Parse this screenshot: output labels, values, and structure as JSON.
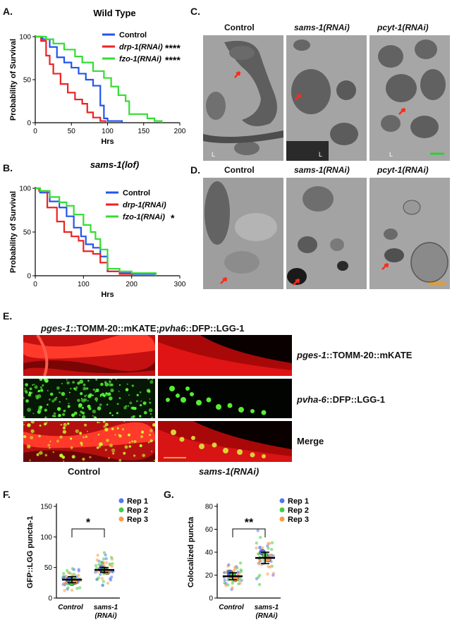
{
  "panel_letters": {
    "A": "A.",
    "B": "B.",
    "C": "C.",
    "D": "D.",
    "E": "E.",
    "F": "F.",
    "G": "G."
  },
  "colors": {
    "control": "#2255ee",
    "drp1": "#ee2222",
    "fzo1": "#33dd33",
    "rep1": "#5577ee",
    "rep2": "#44cc44",
    "rep3": "#ff9944",
    "scalebar_green": "#33cc33",
    "scalebar_orange": "#ff9900",
    "scalebar_yellow": "#d9a84a",
    "arrow": "#ff2a1a"
  },
  "chart_data": [
    {
      "id": "A",
      "type": "line",
      "title": "Wild Type",
      "xlabel": "Hrs",
      "ylabel": "Probability of Survival",
      "xlim": [
        0,
        200
      ],
      "ylim": [
        0,
        100
      ],
      "xticks": [
        "0",
        "50",
        "100",
        "150",
        "200"
      ],
      "yticks": [
        "0",
        "50",
        "100"
      ],
      "series": [
        {
          "name": "Control",
          "color": "#2255ee",
          "stars": "",
          "x": [
            0,
            10,
            20,
            30,
            40,
            50,
            60,
            70,
            80,
            90,
            95,
            100,
            120
          ],
          "y": [
            100,
            97,
            88,
            76,
            70,
            64,
            57,
            50,
            43,
            20,
            5,
            2,
            0
          ]
        },
        {
          "name": "drp-1(RNAi)",
          "color": "#ee2222",
          "stars": "****",
          "x": [
            0,
            8,
            15,
            20,
            25,
            35,
            45,
            55,
            65,
            72,
            80,
            90,
            97
          ],
          "y": [
            100,
            95,
            78,
            68,
            57,
            45,
            35,
            27,
            22,
            12,
            6,
            2,
            0
          ]
        },
        {
          "name": "fzo-1(RNAi)",
          "color": "#33dd33",
          "stars": "****",
          "x": [
            0,
            15,
            25,
            40,
            55,
            65,
            80,
            95,
            105,
            115,
            125,
            130,
            150,
            155,
            165,
            175
          ],
          "y": [
            100,
            97,
            92,
            85,
            77,
            70,
            60,
            52,
            42,
            32,
            25,
            10,
            10,
            5,
            2,
            0
          ]
        }
      ]
    },
    {
      "id": "B",
      "type": "line",
      "title": "sams-1(lof)",
      "xlabel": "Hrs",
      "ylabel": "Probability of Survival",
      "xlim": [
        0,
        300
      ],
      "ylim": [
        0,
        100
      ],
      "xticks": [
        "0",
        "100",
        "200",
        "300"
      ],
      "yticks": [
        "0",
        "50",
        "100"
      ],
      "series": [
        {
          "name": "Control",
          "color": "#2255ee",
          "stars": "",
          "x": [
            0,
            10,
            30,
            50,
            65,
            80,
            95,
            105,
            120,
            135,
            150,
            175,
            200,
            250
          ],
          "y": [
            100,
            95,
            85,
            78,
            68,
            55,
            45,
            36,
            32,
            22,
            5,
            3,
            2,
            0
          ]
        },
        {
          "name": "drp-1(RNAi)",
          "color": "#ee2222",
          "stars": "",
          "x": [
            0,
            8,
            25,
            45,
            60,
            75,
            90,
            100,
            110,
            120,
            135,
            150,
            175,
            200
          ],
          "y": [
            100,
            97,
            78,
            62,
            50,
            45,
            40,
            28,
            28,
            25,
            15,
            5,
            2,
            0
          ]
        },
        {
          "name": "fzo-1(RNAi)",
          "color": "#33dd33",
          "stars": "*",
          "x": [
            0,
            10,
            30,
            50,
            65,
            80,
            100,
            115,
            125,
            135,
            150,
            175,
            200,
            250
          ],
          "y": [
            100,
            97,
            90,
            84,
            80,
            70,
            58,
            50,
            42,
            30,
            8,
            5,
            3,
            0
          ]
        }
      ]
    },
    {
      "id": "F",
      "type": "scatter",
      "xlabel": "",
      "ylabel": "GFP::LGG puncta-1",
      "ylim": [
        0,
        150
      ],
      "yticks": [
        "0",
        "50",
        "100",
        "150"
      ],
      "categories": [
        "Control",
        "sams-1 (RNAi)"
      ],
      "significance": "*",
      "replicates": [
        "Rep 1",
        "Rep 2",
        "Rep 3"
      ],
      "means": [
        30,
        46
      ],
      "sem": [
        5,
        4
      ],
      "rep_means": [
        [
          30,
          25,
          27
        ],
        [
          48,
          45,
          43
        ]
      ]
    },
    {
      "id": "G",
      "type": "scatter",
      "xlabel": "",
      "ylabel": "Colocalized puncta",
      "ylim": [
        0,
        80
      ],
      "yticks": [
        "0",
        "20",
        "40",
        "60",
        "80"
      ],
      "categories": [
        "Control",
        "sams-1 (RNAi)"
      ],
      "significance": "**",
      "replicates": [
        "Rep 1",
        "Rep 2",
        "Rep 3"
      ],
      "means": [
        19,
        35
      ],
      "sem": [
        3,
        5
      ],
      "rep_means": [
        [
          22,
          20,
          17
        ],
        [
          40,
          37,
          34
        ]
      ]
    }
  ],
  "panel_c": {
    "labels": [
      "Control",
      "sams-1(RNAi)",
      "pcyt-1(RNAi)"
    ],
    "lumen": "L"
  },
  "panel_d": {
    "labels": [
      "Control",
      "sams-1(RNAi)",
      "pcyt-1(RNAi)"
    ]
  },
  "panel_e": {
    "title": {
      "p1": "pges-1",
      "p2": "::TOMM-20::mKATE;",
      "p3": "pvha6",
      "p4": "::DFP::LGG-1"
    },
    "row1": {
      "a": "pges-1",
      "b": "::TOMM-20::mKATE"
    },
    "row2": {
      "a": "pvha-6",
      "b": "::DFP::LGG-1"
    },
    "row3": "Merge",
    "col_control": "Control",
    "col_sams": "sams-1(RNAi)"
  }
}
